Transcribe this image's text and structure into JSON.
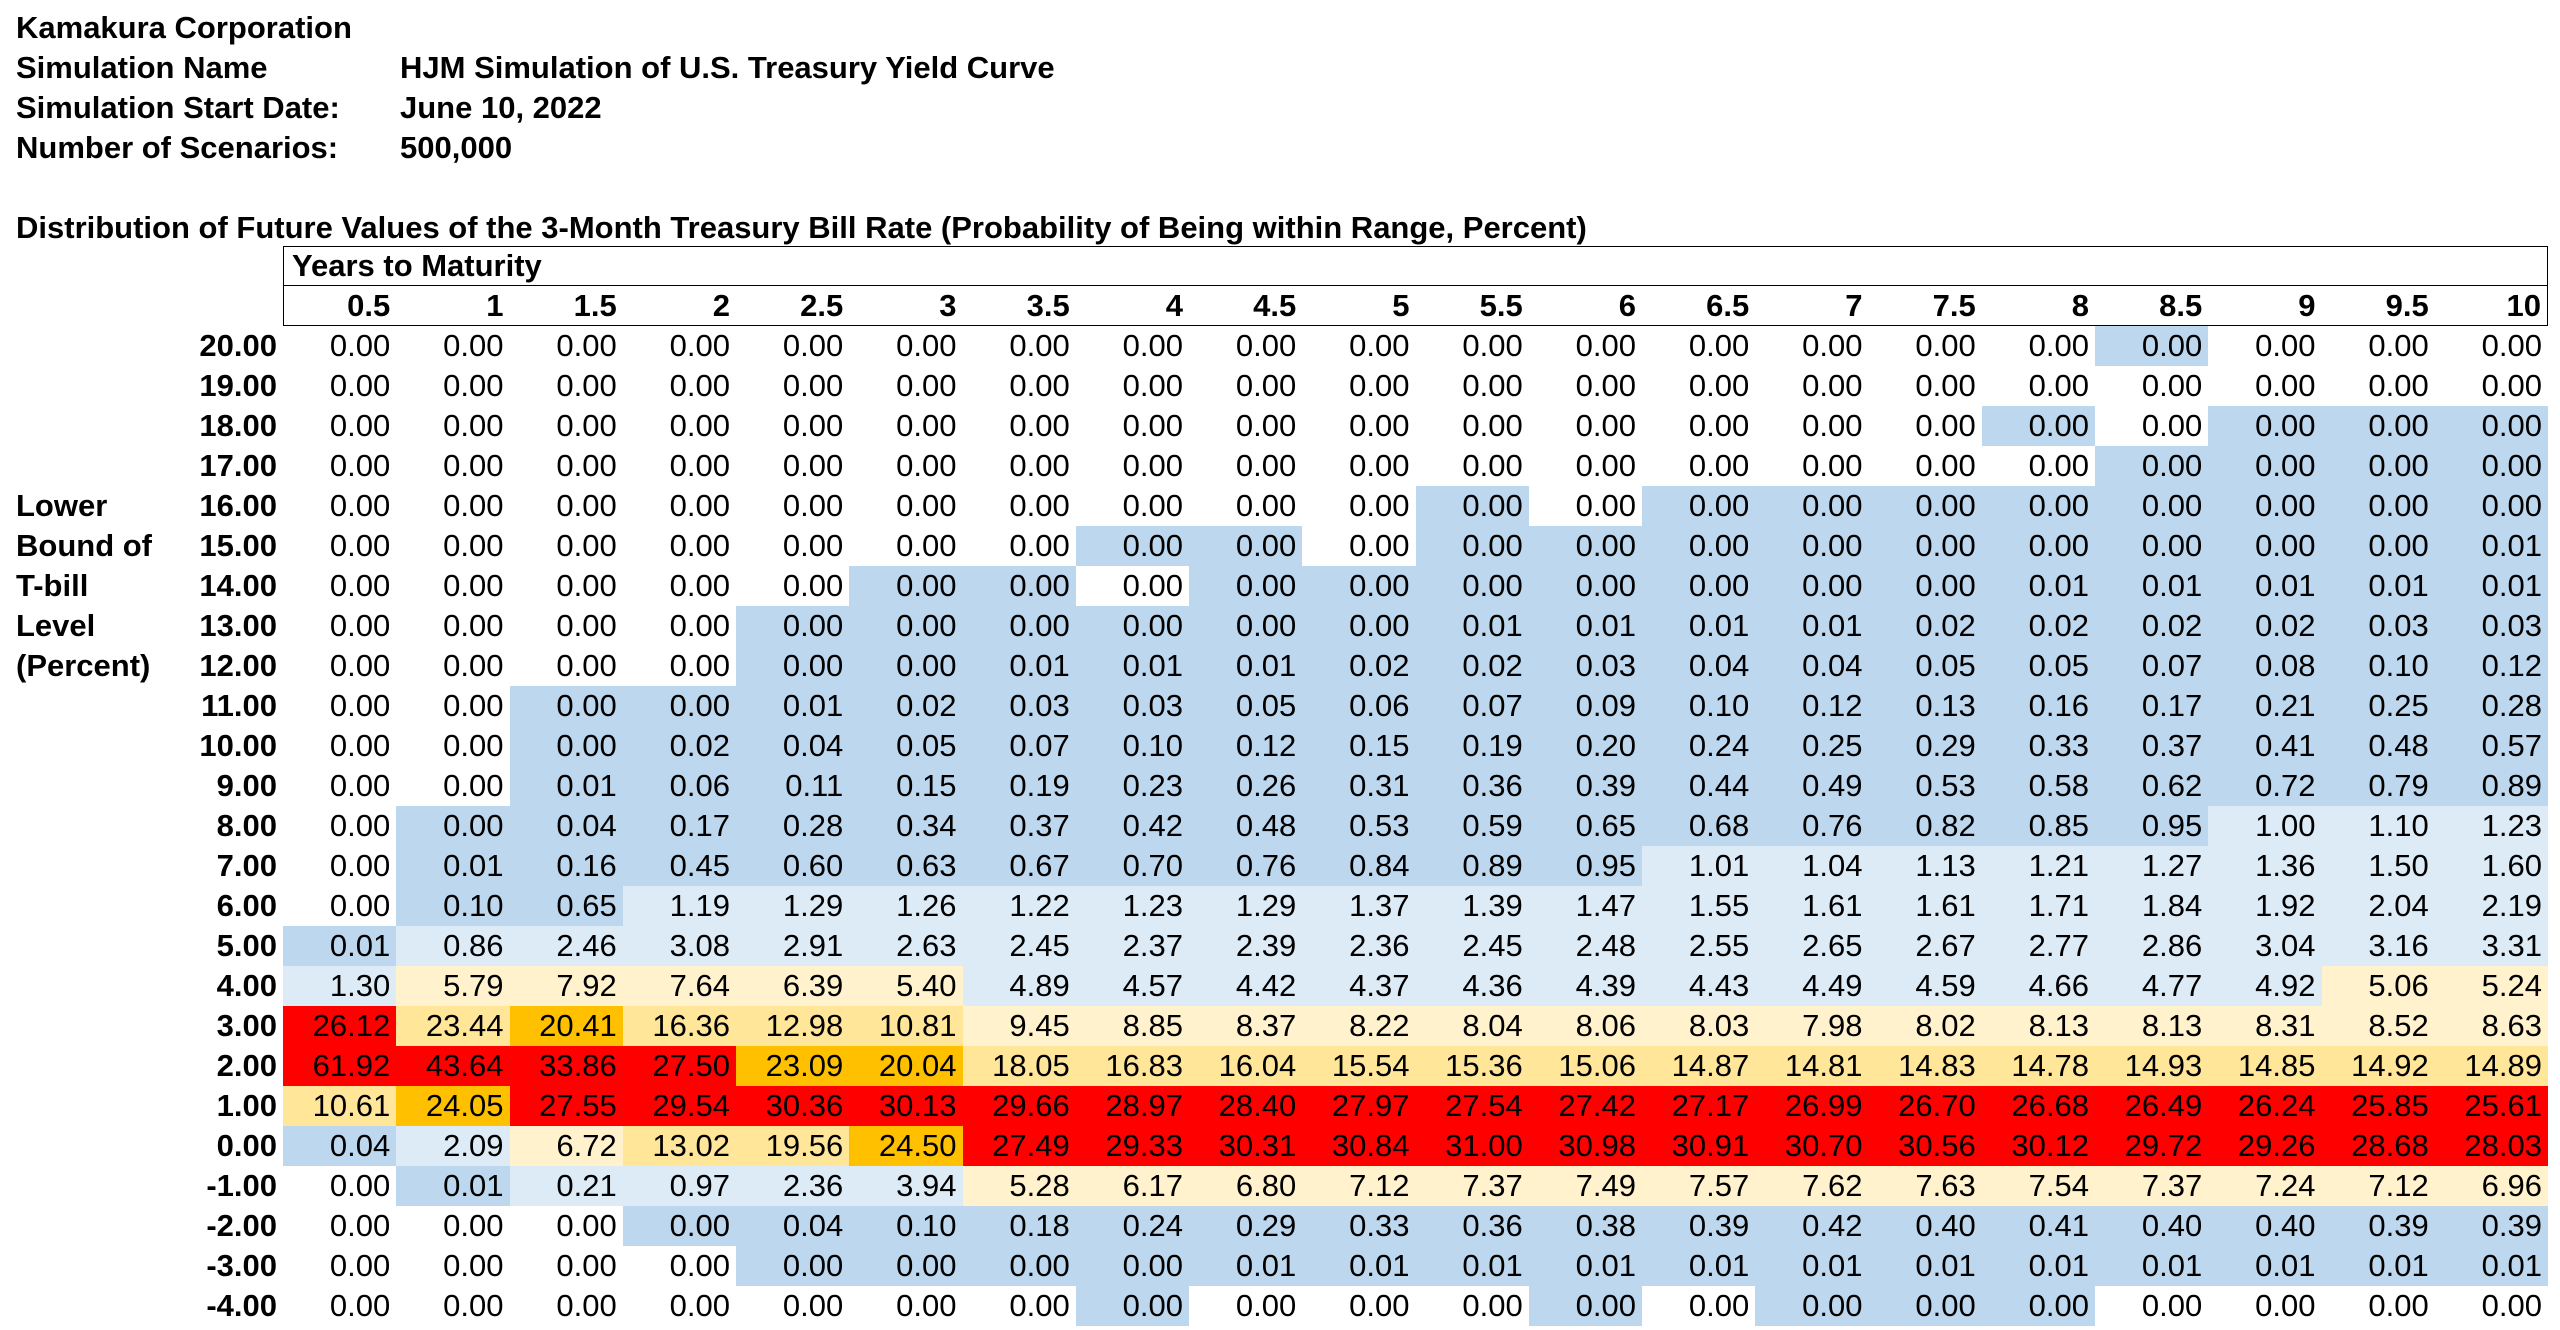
{
  "meta": [
    {
      "label": "Kamakura Corporation",
      "value": ""
    },
    {
      "label": "Simulation Name",
      "value": "HJM Simulation of U.S. Treasury Yield Curve"
    },
    {
      "label": "Simulation Start Date:",
      "value": "June 10, 2022"
    },
    {
      "label": "Number of Scenarios:",
      "value": "500,000"
    }
  ],
  "subtitle": "Distribution of Future Values of the 3-Month Treasury Bill Rate (Probability of Being within Range, Percent)",
  "row_axis_label": [
    "Lower",
    "Bound of",
    "T-bill",
    "Level",
    "(Percent)"
  ],
  "col_axis_label": "Years to Maturity",
  "colors": {
    "red": "#ff0000",
    "orange": "#ffc000",
    "yellow": "#ffe699",
    "cream": "#fff2cc",
    "lightblue": "#ddebf7",
    "blue": "#bdd7ee",
    "white": "#ffffff"
  },
  "table": {
    "columns": [
      "0.5",
      "1",
      "1.5",
      "2",
      "2.5",
      "3",
      "3.5",
      "4",
      "4.5",
      "5",
      "5.5",
      "6",
      "6.5",
      "7",
      "7.5",
      "8",
      "8.5",
      "9",
      "9.5",
      "10"
    ],
    "rows": [
      {
        "label": "20.00",
        "values": [
          "0.00",
          "0.00",
          "0.00",
          "0.00",
          "0.00",
          "0.00",
          "0.00",
          "0.00",
          "0.00",
          "0.00",
          "0.00",
          "0.00",
          "0.00",
          "0.00",
          "0.00",
          "0.00",
          "0.00",
          "0.00",
          "0.00",
          "0.00"
        ],
        "colors": "WWWWWWWWWWWWWWWWBWWW"
      },
      {
        "label": "19.00",
        "values": [
          "0.00",
          "0.00",
          "0.00",
          "0.00",
          "0.00",
          "0.00",
          "0.00",
          "0.00",
          "0.00",
          "0.00",
          "0.00",
          "0.00",
          "0.00",
          "0.00",
          "0.00",
          "0.00",
          "0.00",
          "0.00",
          "0.00",
          "0.00"
        ],
        "colors": "WWWWWWWWWWWWWWWWWWWW"
      },
      {
        "label": "18.00",
        "values": [
          "0.00",
          "0.00",
          "0.00",
          "0.00",
          "0.00",
          "0.00",
          "0.00",
          "0.00",
          "0.00",
          "0.00",
          "0.00",
          "0.00",
          "0.00",
          "0.00",
          "0.00",
          "0.00",
          "0.00",
          "0.00",
          "0.00",
          "0.00"
        ],
        "colors": "WWWWWWWWWWWWWWWBWBBB"
      },
      {
        "label": "17.00",
        "values": [
          "0.00",
          "0.00",
          "0.00",
          "0.00",
          "0.00",
          "0.00",
          "0.00",
          "0.00",
          "0.00",
          "0.00",
          "0.00",
          "0.00",
          "0.00",
          "0.00",
          "0.00",
          "0.00",
          "0.00",
          "0.00",
          "0.00",
          "0.00"
        ],
        "colors": "WWWWWWWWWWWWWWWWBBBB"
      },
      {
        "label": "16.00",
        "values": [
          "0.00",
          "0.00",
          "0.00",
          "0.00",
          "0.00",
          "0.00",
          "0.00",
          "0.00",
          "0.00",
          "0.00",
          "0.00",
          "0.00",
          "0.00",
          "0.00",
          "0.00",
          "0.00",
          "0.00",
          "0.00",
          "0.00",
          "0.00"
        ],
        "colors": "WWWWWWWWWWBWBBBBBBBB"
      },
      {
        "label": "15.00",
        "values": [
          "0.00",
          "0.00",
          "0.00",
          "0.00",
          "0.00",
          "0.00",
          "0.00",
          "0.00",
          "0.00",
          "0.00",
          "0.00",
          "0.00",
          "0.00",
          "0.00",
          "0.00",
          "0.00",
          "0.00",
          "0.00",
          "0.00",
          "0.01"
        ],
        "colors": "WWWWWWWBBWBBBBBBBBBB"
      },
      {
        "label": "14.00",
        "values": [
          "0.00",
          "0.00",
          "0.00",
          "0.00",
          "0.00",
          "0.00",
          "0.00",
          "0.00",
          "0.00",
          "0.00",
          "0.00",
          "0.00",
          "0.00",
          "0.00",
          "0.00",
          "0.01",
          "0.01",
          "0.01",
          "0.01",
          "0.01"
        ],
        "colors": "WWWWWBBWBBBBBBBBBBBB"
      },
      {
        "label": "13.00",
        "values": [
          "0.00",
          "0.00",
          "0.00",
          "0.00",
          "0.00",
          "0.00",
          "0.00",
          "0.00",
          "0.00",
          "0.00",
          "0.01",
          "0.01",
          "0.01",
          "0.01",
          "0.02",
          "0.02",
          "0.02",
          "0.02",
          "0.03",
          "0.03"
        ],
        "colors": "WWWWBBBBBBBBBBBBBBBB"
      },
      {
        "label": "12.00",
        "values": [
          "0.00",
          "0.00",
          "0.00",
          "0.00",
          "0.00",
          "0.00",
          "0.01",
          "0.01",
          "0.01",
          "0.02",
          "0.02",
          "0.03",
          "0.04",
          "0.04",
          "0.05",
          "0.05",
          "0.07",
          "0.08",
          "0.10",
          "0.12"
        ],
        "colors": "WWWWBBBBBBBBBBBBBBBB"
      },
      {
        "label": "11.00",
        "values": [
          "0.00",
          "0.00",
          "0.00",
          "0.00",
          "0.01",
          "0.02",
          "0.03",
          "0.03",
          "0.05",
          "0.06",
          "0.07",
          "0.09",
          "0.10",
          "0.12",
          "0.13",
          "0.16",
          "0.17",
          "0.21",
          "0.25",
          "0.28"
        ],
        "colors": "WWBBBBBBBBBBBBBBBBBB"
      },
      {
        "label": "10.00",
        "values": [
          "0.00",
          "0.00",
          "0.00",
          "0.02",
          "0.04",
          "0.05",
          "0.07",
          "0.10",
          "0.12",
          "0.15",
          "0.19",
          "0.20",
          "0.24",
          "0.25",
          "0.29",
          "0.33",
          "0.37",
          "0.41",
          "0.48",
          "0.57"
        ],
        "colors": "WWBBBBBBBBBBBBBBBBBB"
      },
      {
        "label": "9.00",
        "values": [
          "0.00",
          "0.00",
          "0.01",
          "0.06",
          "0.11",
          "0.15",
          "0.19",
          "0.23",
          "0.26",
          "0.31",
          "0.36",
          "0.39",
          "0.44",
          "0.49",
          "0.53",
          "0.58",
          "0.62",
          "0.72",
          "0.79",
          "0.89"
        ],
        "colors": "WWBBBBBBBBBBBBBBBBBB"
      },
      {
        "label": "8.00",
        "values": [
          "0.00",
          "0.00",
          "0.04",
          "0.17",
          "0.28",
          "0.34",
          "0.37",
          "0.42",
          "0.48",
          "0.53",
          "0.59",
          "0.65",
          "0.68",
          "0.76",
          "0.82",
          "0.85",
          "0.95",
          "1.00",
          "1.10",
          "1.23"
        ],
        "colors": "WBBBBBBBBBBBBBBBBLLL"
      },
      {
        "label": "7.00",
        "values": [
          "0.00",
          "0.01",
          "0.16",
          "0.45",
          "0.60",
          "0.63",
          "0.67",
          "0.70",
          "0.76",
          "0.84",
          "0.89",
          "0.95",
          "1.01",
          "1.04",
          "1.13",
          "1.21",
          "1.27",
          "1.36",
          "1.50",
          "1.60"
        ],
        "colors": "WBBBBBBBBBBBLLLLLLLL"
      },
      {
        "label": "6.00",
        "values": [
          "0.00",
          "0.10",
          "0.65",
          "1.19",
          "1.29",
          "1.26",
          "1.22",
          "1.23",
          "1.29",
          "1.37",
          "1.39",
          "1.47",
          "1.55",
          "1.61",
          "1.61",
          "1.71",
          "1.84",
          "1.92",
          "2.04",
          "2.19"
        ],
        "colors": "WBBLLLLLLLLLLLLLLLLL"
      },
      {
        "label": "5.00",
        "values": [
          "0.01",
          "0.86",
          "2.46",
          "3.08",
          "2.91",
          "2.63",
          "2.45",
          "2.37",
          "2.39",
          "2.36",
          "2.45",
          "2.48",
          "2.55",
          "2.65",
          "2.67",
          "2.77",
          "2.86",
          "3.04",
          "3.16",
          "3.31"
        ],
        "colors": "BLLLLLLLLLLLLLLLLLLL"
      },
      {
        "label": "4.00",
        "values": [
          "1.30",
          "5.79",
          "7.92",
          "7.64",
          "6.39",
          "5.40",
          "4.89",
          "4.57",
          "4.42",
          "4.37",
          "4.36",
          "4.39",
          "4.43",
          "4.49",
          "4.59",
          "4.66",
          "4.77",
          "4.92",
          "5.06",
          "5.24"
        ],
        "colors": "LCCCCCLLLLLLLLLLLLCC"
      },
      {
        "label": "3.00",
        "values": [
          "26.12",
          "23.44",
          "20.41",
          "16.36",
          "12.98",
          "10.81",
          "9.45",
          "8.85",
          "8.37",
          "8.22",
          "8.04",
          "8.06",
          "8.03",
          "7.98",
          "8.02",
          "8.13",
          "8.13",
          "8.31",
          "8.52",
          "8.63"
        ],
        "colors": "RYOYYYCCCCCCCCCCCCCC"
      },
      {
        "label": "2.00",
        "values": [
          "61.92",
          "43.64",
          "33.86",
          "27.50",
          "23.09",
          "20.04",
          "18.05",
          "16.83",
          "16.04",
          "15.54",
          "15.36",
          "15.06",
          "14.87",
          "14.81",
          "14.83",
          "14.78",
          "14.93",
          "14.85",
          "14.92",
          "14.89"
        ],
        "colors": "RRRROOYYYYYYYYYYYYYY"
      },
      {
        "label": "1.00",
        "values": [
          "10.61",
          "24.05",
          "27.55",
          "29.54",
          "30.36",
          "30.13",
          "29.66",
          "28.97",
          "28.40",
          "27.97",
          "27.54",
          "27.42",
          "27.17",
          "26.99",
          "26.70",
          "26.68",
          "26.49",
          "26.24",
          "25.85",
          "25.61"
        ],
        "colors": "YORRRRRRRRRRRRRRRRRR"
      },
      {
        "label": "0.00",
        "values": [
          "0.04",
          "2.09",
          "6.72",
          "13.02",
          "19.56",
          "24.50",
          "27.49",
          "29.33",
          "30.31",
          "30.84",
          "31.00",
          "30.98",
          "30.91",
          "30.70",
          "30.56",
          "30.12",
          "29.72",
          "29.26",
          "28.68",
          "28.03"
        ],
        "colors": "BLCYYORRRRRRRRRRRRRR"
      },
      {
        "label": "-1.00",
        "values": [
          "0.00",
          "0.01",
          "0.21",
          "0.97",
          "2.36",
          "3.94",
          "5.28",
          "6.17",
          "6.80",
          "7.12",
          "7.37",
          "7.49",
          "7.57",
          "7.62",
          "7.63",
          "7.54",
          "7.37",
          "7.24",
          "7.12",
          "6.96"
        ],
        "colors": "WBLLLLCCCCCCCCCCCCCC"
      },
      {
        "label": "-2.00",
        "values": [
          "0.00",
          "0.00",
          "0.00",
          "0.00",
          "0.04",
          "0.10",
          "0.18",
          "0.24",
          "0.29",
          "0.33",
          "0.36",
          "0.38",
          "0.39",
          "0.42",
          "0.40",
          "0.41",
          "0.40",
          "0.40",
          "0.39",
          "0.39"
        ],
        "colors": "WWWBBBBBBBBBBBBBBBBB"
      },
      {
        "label": "-3.00",
        "values": [
          "0.00",
          "0.00",
          "0.00",
          "0.00",
          "0.00",
          "0.00",
          "0.00",
          "0.00",
          "0.01",
          "0.01",
          "0.01",
          "0.01",
          "0.01",
          "0.01",
          "0.01",
          "0.01",
          "0.01",
          "0.01",
          "0.01",
          "0.01"
        ],
        "colors": "WWWWBBBBBBBBBBBBBBBB"
      },
      {
        "label": "-4.00",
        "values": [
          "0.00",
          "0.00",
          "0.00",
          "0.00",
          "0.00",
          "0.00",
          "0.00",
          "0.00",
          "0.00",
          "0.00",
          "0.00",
          "0.00",
          "0.00",
          "0.00",
          "0.00",
          "0.00",
          "0.00",
          "0.00",
          "0.00",
          "0.00"
        ],
        "colors": "WWWWWWWBWWWBWBBBWWWW"
      }
    ]
  }
}
